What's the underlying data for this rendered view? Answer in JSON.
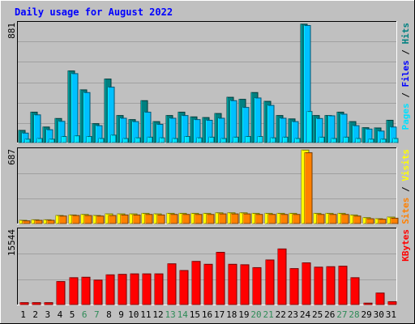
{
  "title": "Daily usage for August 2022",
  "colors": {
    "background": "#c0c0c0",
    "title": "#0000ff",
    "plot_bg": "#c0c0c0",
    "gridline": "#a0a0a0",
    "border_dark": "#000000",
    "border_light": "#ffffff",
    "hits": "#008080",
    "files": "#00c0ff",
    "pages": "#00e0ff",
    "visits": "#ffff00",
    "sites": "#ff8000",
    "kbytes": "#ff0000",
    "weekday": "#000000",
    "weekend": "#2e8b57"
  },
  "chart_data": [
    {
      "type": "bar",
      "panel": "hits-files-pages",
      "ymax_label": "881",
      "ylim": [
        0,
        881
      ],
      "right_label_parts": [
        {
          "text": "Pages",
          "color": "#00e0ff"
        },
        {
          "text": " / ",
          "color": "#000000"
        },
        {
          "text": "Files",
          "color": "#0000ff"
        },
        {
          "text": " / ",
          "color": "#000000"
        },
        {
          "text": "Hits",
          "color": "#008080"
        }
      ],
      "categories": [
        "1",
        "2",
        "3",
        "4",
        "5",
        "6",
        "7",
        "8",
        "9",
        "10",
        "11",
        "12",
        "13",
        "14",
        "15",
        "16",
        "17",
        "18",
        "19",
        "20",
        "21",
        "22",
        "23",
        "24",
        "25",
        "26",
        "27",
        "28",
        "29",
        "30",
        "31"
      ],
      "series": [
        {
          "key": "hits",
          "values": [
            90,
            225,
            115,
            178,
            530,
            390,
            140,
            470,
            200,
            170,
            310,
            155,
            200,
            225,
            190,
            185,
            215,
            335,
            320,
            370,
            305,
            200,
            175,
            876,
            200,
            200,
            225,
            155,
            110,
            108,
            165
          ]
        },
        {
          "key": "files",
          "values": [
            70,
            205,
            95,
            157,
            510,
            370,
            125,
            410,
            180,
            155,
            225,
            135,
            180,
            200,
            170,
            165,
            180,
            310,
            260,
            330,
            275,
            180,
            155,
            866,
            178,
            198,
            210,
            125,
            100,
            85,
            115
          ]
        },
        {
          "key": "pages",
          "values": [
            25,
            30,
            25,
            45,
            50,
            45,
            30,
            55,
            30,
            35,
            40,
            35,
            30,
            45,
            35,
            40,
            30,
            40,
            45,
            45,
            35,
            40,
            30,
            230,
            40,
            30,
            40,
            30,
            25,
            25,
            30
          ]
        }
      ]
    },
    {
      "type": "bar",
      "panel": "visits-sites",
      "ymax_label": "687",
      "ylim": [
        0,
        687
      ],
      "right_label_parts": [
        {
          "text": "Sites",
          "color": "#ff8000"
        },
        {
          "text": " / ",
          "color": "#000000"
        },
        {
          "text": "Visits",
          "color": "#ffff00"
        }
      ],
      "categories": [
        "1",
        "2",
        "3",
        "4",
        "5",
        "6",
        "7",
        "8",
        "9",
        "10",
        "11",
        "12",
        "13",
        "14",
        "15",
        "16",
        "17",
        "18",
        "19",
        "20",
        "21",
        "22",
        "23",
        "24",
        "25",
        "26",
        "27",
        "28",
        "29",
        "30",
        "31"
      ],
      "series": [
        {
          "key": "visits",
          "values": [
            30,
            35,
            35,
            75,
            80,
            85,
            75,
            90,
            90,
            90,
            95,
            90,
            95,
            95,
            95,
            95,
            100,
            100,
            100,
            95,
            95,
            95,
            95,
            685,
            95,
            95,
            95,
            80,
            55,
            45,
            60
          ]
        },
        {
          "key": "sites",
          "values": [
            25,
            30,
            30,
            70,
            75,
            75,
            70,
            75,
            80,
            80,
            85,
            80,
            85,
            85,
            85,
            85,
            90,
            90,
            90,
            85,
            85,
            85,
            85,
            660,
            85,
            85,
            85,
            70,
            45,
            40,
            50
          ]
        }
      ]
    },
    {
      "type": "bar",
      "panel": "kbytes",
      "ymax_label": "15544",
      "ylim": [
        0,
        15544
      ],
      "right_label_parts": [
        {
          "text": "KBytes",
          "color": "#ff0000"
        }
      ],
      "categories": [
        "1",
        "2",
        "3",
        "4",
        "5",
        "6",
        "7",
        "8",
        "9",
        "10",
        "11",
        "12",
        "13",
        "14",
        "15",
        "16",
        "17",
        "18",
        "19",
        "20",
        "21",
        "22",
        "23",
        "24",
        "25",
        "26",
        "27",
        "28",
        "29",
        "30",
        "31"
      ],
      "series": [
        {
          "key": "kbytes",
          "values": [
            400,
            400,
            400,
            4800,
            5600,
            5700,
            5100,
            6200,
            6300,
            6400,
            6400,
            6400,
            8500,
            7100,
            9000,
            8400,
            10900,
            8400,
            8300,
            7700,
            9300,
            11600,
            7500,
            8700,
            7800,
            7900,
            8000,
            5600,
            300,
            2400,
            600
          ]
        }
      ]
    }
  ],
  "x_labels": [
    "1",
    "2",
    "3",
    "4",
    "5",
    "6",
    "7",
    "8",
    "9",
    "10",
    "11",
    "12",
    "13",
    "14",
    "15",
    "16",
    "17",
    "18",
    "19",
    "20",
    "21",
    "22",
    "23",
    "24",
    "25",
    "26",
    "27",
    "28",
    "29",
    "30",
    "31"
  ],
  "weekend_days": [
    "6",
    "7",
    "13",
    "14",
    "20",
    "21",
    "27",
    "28"
  ]
}
